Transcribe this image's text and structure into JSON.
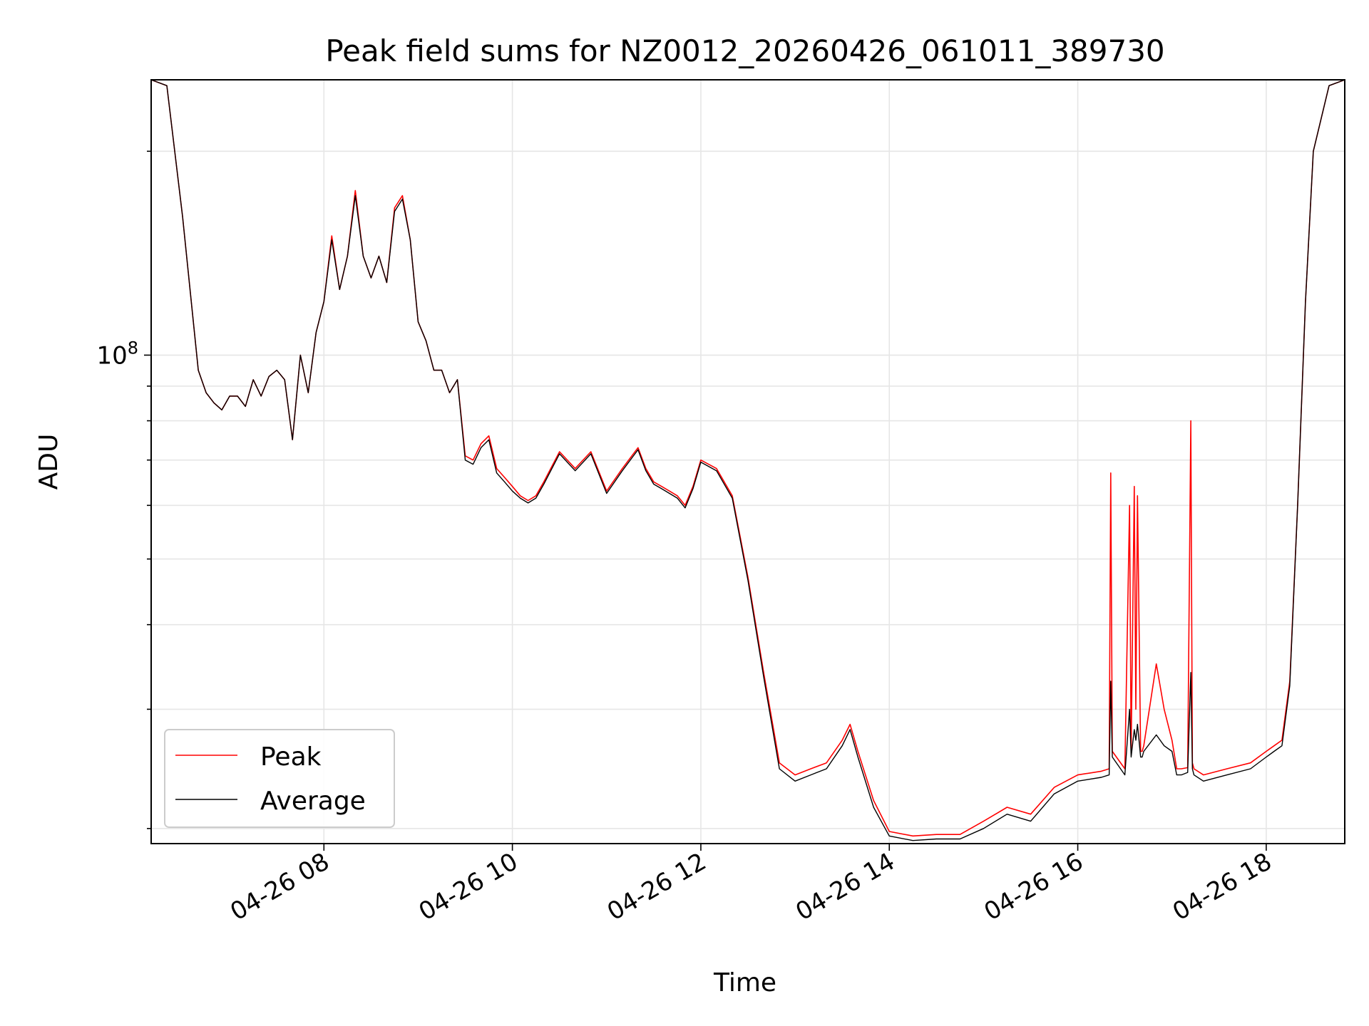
{
  "chart_data": {
    "type": "line",
    "title": "Peak field sums for NZ0012_20260426_061011_389730",
    "xlabel": "Time",
    "ylabel": "ADU",
    "yscale": "log",
    "grid": "on",
    "legend_placement": "lower-left",
    "xlim": [
      "2026-04-26 06:10",
      "2026-04-26 18:50"
    ],
    "ylim": [
      19000000.0,
      255000000.0
    ],
    "x_ticks": [
      {
        "label": "04-26 08",
        "value": "2026-04-26 08:00"
      },
      {
        "label": "04-26 10",
        "value": "2026-04-26 10:00"
      },
      {
        "label": "04-26 12",
        "value": "2026-04-26 12:00"
      },
      {
        "label": "04-26 14",
        "value": "2026-04-26 14:00"
      },
      {
        "label": "04-26 16",
        "value": "2026-04-26 16:00"
      },
      {
        "label": "04-26 18",
        "value": "2026-04-26 18:00"
      }
    ],
    "y_ticks": [
      {
        "base": "10",
        "exp": "8",
        "value": 100000000
      }
    ],
    "series": [
      {
        "name": "Peak",
        "color": "#ff0000",
        "x": [
          "2026-04-26 06:10",
          "2026-04-26 06:20",
          "2026-04-26 06:30",
          "2026-04-26 06:40",
          "2026-04-26 06:45",
          "2026-04-26 06:50",
          "2026-04-26 06:55",
          "2026-04-26 07:00",
          "2026-04-26 07:05",
          "2026-04-26 07:10",
          "2026-04-26 07:15",
          "2026-04-26 07:20",
          "2026-04-26 07:25",
          "2026-04-26 07:30",
          "2026-04-26 07:35",
          "2026-04-26 07:40",
          "2026-04-26 07:45",
          "2026-04-26 07:50",
          "2026-04-26 07:55",
          "2026-04-26 08:00",
          "2026-04-26 08:05",
          "2026-04-26 08:10",
          "2026-04-26 08:15",
          "2026-04-26 08:20",
          "2026-04-26 08:25",
          "2026-04-26 08:30",
          "2026-04-26 08:35",
          "2026-04-26 08:40",
          "2026-04-26 08:45",
          "2026-04-26 08:50",
          "2026-04-26 08:55",
          "2026-04-26 09:00",
          "2026-04-26 09:05",
          "2026-04-26 09:10",
          "2026-04-26 09:15",
          "2026-04-26 09:20",
          "2026-04-26 09:25",
          "2026-04-26 09:30",
          "2026-04-26 09:35",
          "2026-04-26 09:40",
          "2026-04-26 09:45",
          "2026-04-26 09:50",
          "2026-04-26 09:55",
          "2026-04-26 10:00",
          "2026-04-26 10:05",
          "2026-04-26 10:10",
          "2026-04-26 10:15",
          "2026-04-26 10:20",
          "2026-04-26 10:30",
          "2026-04-26 10:40",
          "2026-04-26 10:50",
          "2026-04-26 11:00",
          "2026-04-26 11:10",
          "2026-04-26 11:20",
          "2026-04-26 11:25",
          "2026-04-26 11:30",
          "2026-04-26 11:35",
          "2026-04-26 11:40",
          "2026-04-26 11:45",
          "2026-04-26 11:50",
          "2026-04-26 11:55",
          "2026-04-26 12:00",
          "2026-04-26 12:10",
          "2026-04-26 12:20",
          "2026-04-26 12:30",
          "2026-04-26 12:40",
          "2026-04-26 12:50",
          "2026-04-26 13:00",
          "2026-04-26 13:10",
          "2026-04-26 13:20",
          "2026-04-26 13:30",
          "2026-04-26 13:35",
          "2026-04-26 13:40",
          "2026-04-26 13:50",
          "2026-04-26 14:00",
          "2026-04-26 14:15",
          "2026-04-26 14:30",
          "2026-04-26 14:45",
          "2026-04-26 15:00",
          "2026-04-26 15:15",
          "2026-04-26 15:30",
          "2026-04-26 15:45",
          "2026-04-26 16:00",
          "2026-04-26 16:15",
          "2026-04-26 16:20",
          "2026-04-26 16:21",
          "2026-04-26 16:22",
          "2026-04-26 16:30",
          "2026-04-26 16:33",
          "2026-04-26 16:34",
          "2026-04-26 16:36",
          "2026-04-26 16:37",
          "2026-04-26 16:38",
          "2026-04-26 16:40",
          "2026-04-26 16:41",
          "2026-04-26 16:42",
          "2026-04-26 16:50",
          "2026-04-26 16:55",
          "2026-04-26 17:00",
          "2026-04-26 17:03",
          "2026-04-26 17:06",
          "2026-04-26 17:10",
          "2026-04-26 17:12",
          "2026-04-26 17:13",
          "2026-04-26 17:14",
          "2026-04-26 17:20",
          "2026-04-26 17:35",
          "2026-04-26 17:50",
          "2026-04-26 18:00",
          "2026-04-26 18:05",
          "2026-04-26 18:10",
          "2026-04-26 18:15",
          "2026-04-26 18:20",
          "2026-04-26 18:25",
          "2026-04-26 18:30",
          "2026-04-26 18:40",
          "2026-04-26 18:50"
        ],
        "values": [
          255000000,
          250000000,
          160000000,
          95000000,
          88000000,
          85000000,
          83000000,
          87000000,
          87000000,
          84000000,
          92000000,
          87000000,
          93000000,
          95000000,
          92000000,
          75000000,
          100000000,
          88000000,
          108000000,
          120000000,
          150000000,
          125000000,
          140000000,
          175000000,
          140000000,
          130000000,
          140000000,
          128000000,
          165000000,
          172000000,
          148000000,
          112000000,
          105000000,
          95000000,
          95000000,
          88000000,
          92000000,
          71000000,
          70000000,
          74000000,
          76000000,
          68000000,
          66000000,
          64000000,
          62000000,
          61000000,
          62000000,
          65000000,
          72000000,
          68000000,
          72000000,
          63000000,
          68000000,
          73000000,
          68000000,
          65000000,
          64000000,
          63000000,
          62000000,
          60000000,
          64000000,
          70000000,
          68000000,
          62000000,
          47000000,
          34000000,
          25000000,
          24000000,
          24500000,
          25000000,
          27000000,
          28500000,
          26000000,
          22000000,
          19800000,
          19500000,
          19600000,
          19600000,
          20500000,
          21500000,
          21000000,
          23000000,
          24000000,
          24300000,
          24500000,
          67000000,
          26000000,
          24500000,
          60000000,
          26000000,
          64000000,
          30000000,
          62000000,
          26000000,
          26000000,
          26500000,
          35000000,
          30000000,
          27000000,
          24500000,
          24500000,
          24600000,
          80000000,
          25000000,
          24500000,
          24000000,
          24500000,
          25000000,
          26000000,
          26500000,
          27000000,
          33000000,
          60000000,
          120000000,
          200000000,
          250000000,
          255000000
        ]
      },
      {
        "name": "Average",
        "color": "#000000",
        "x": [
          "2026-04-26 06:10",
          "2026-04-26 06:20",
          "2026-04-26 06:30",
          "2026-04-26 06:40",
          "2026-04-26 06:45",
          "2026-04-26 06:50",
          "2026-04-26 06:55",
          "2026-04-26 07:00",
          "2026-04-26 07:05",
          "2026-04-26 07:10",
          "2026-04-26 07:15",
          "2026-04-26 07:20",
          "2026-04-26 07:25",
          "2026-04-26 07:30",
          "2026-04-26 07:35",
          "2026-04-26 07:40",
          "2026-04-26 07:45",
          "2026-04-26 07:50",
          "2026-04-26 07:55",
          "2026-04-26 08:00",
          "2026-04-26 08:05",
          "2026-04-26 08:10",
          "2026-04-26 08:15",
          "2026-04-26 08:20",
          "2026-04-26 08:25",
          "2026-04-26 08:30",
          "2026-04-26 08:35",
          "2026-04-26 08:40",
          "2026-04-26 08:45",
          "2026-04-26 08:50",
          "2026-04-26 08:55",
          "2026-04-26 09:00",
          "2026-04-26 09:05",
          "2026-04-26 09:10",
          "2026-04-26 09:15",
          "2026-04-26 09:20",
          "2026-04-26 09:25",
          "2026-04-26 09:30",
          "2026-04-26 09:35",
          "2026-04-26 09:40",
          "2026-04-26 09:45",
          "2026-04-26 09:50",
          "2026-04-26 09:55",
          "2026-04-26 10:00",
          "2026-04-26 10:05",
          "2026-04-26 10:10",
          "2026-04-26 10:15",
          "2026-04-26 10:20",
          "2026-04-26 10:30",
          "2026-04-26 10:40",
          "2026-04-26 10:50",
          "2026-04-26 11:00",
          "2026-04-26 11:10",
          "2026-04-26 11:20",
          "2026-04-26 11:25",
          "2026-04-26 11:30",
          "2026-04-26 11:35",
          "2026-04-26 11:40",
          "2026-04-26 11:45",
          "2026-04-26 11:50",
          "2026-04-26 11:55",
          "2026-04-26 12:00",
          "2026-04-26 12:10",
          "2026-04-26 12:20",
          "2026-04-26 12:30",
          "2026-04-26 12:40",
          "2026-04-26 12:50",
          "2026-04-26 13:00",
          "2026-04-26 13:10",
          "2026-04-26 13:20",
          "2026-04-26 13:30",
          "2026-04-26 13:35",
          "2026-04-26 13:40",
          "2026-04-26 13:50",
          "2026-04-26 14:00",
          "2026-04-26 14:15",
          "2026-04-26 14:30",
          "2026-04-26 14:45",
          "2026-04-26 15:00",
          "2026-04-26 15:15",
          "2026-04-26 15:30",
          "2026-04-26 15:45",
          "2026-04-26 16:00",
          "2026-04-26 16:15",
          "2026-04-26 16:20",
          "2026-04-26 16:21",
          "2026-04-26 16:22",
          "2026-04-26 16:30",
          "2026-04-26 16:33",
          "2026-04-26 16:34",
          "2026-04-26 16:36",
          "2026-04-26 16:37",
          "2026-04-26 16:38",
          "2026-04-26 16:40",
          "2026-04-26 16:41",
          "2026-04-26 16:42",
          "2026-04-26 16:50",
          "2026-04-26 16:55",
          "2026-04-26 17:00",
          "2026-04-26 17:03",
          "2026-04-26 17:06",
          "2026-04-26 17:10",
          "2026-04-26 17:12",
          "2026-04-26 17:13",
          "2026-04-26 17:14",
          "2026-04-26 17:20",
          "2026-04-26 17:35",
          "2026-04-26 17:50",
          "2026-04-26 18:00",
          "2026-04-26 18:05",
          "2026-04-26 18:10",
          "2026-04-26 18:15",
          "2026-04-26 18:20",
          "2026-04-26 18:25",
          "2026-04-26 18:30",
          "2026-04-26 18:40",
          "2026-04-26 18:50"
        ],
        "values": [
          255000000,
          250000000,
          160000000,
          95000000,
          88000000,
          85000000,
          83000000,
          87000000,
          87000000,
          84000000,
          92000000,
          87000000,
          93000000,
          95000000,
          92000000,
          75000000,
          100000000,
          88000000,
          108000000,
          120000000,
          148000000,
          125000000,
          140000000,
          172000000,
          140000000,
          130000000,
          140000000,
          128000000,
          163000000,
          170000000,
          148000000,
          112000000,
          105000000,
          95000000,
          95000000,
          88000000,
          92000000,
          70000000,
          69000000,
          73000000,
          75000000,
          67000000,
          65000000,
          63000000,
          61500000,
          60500000,
          61500000,
          64500000,
          71500000,
          67500000,
          71500000,
          62500000,
          67500000,
          72500000,
          67500000,
          64500000,
          63500000,
          62500000,
          61500000,
          59500000,
          63500000,
          69500000,
          67500000,
          61500000,
          46500000,
          33500000,
          24500000,
          23500000,
          24000000,
          24500000,
          26500000,
          28000000,
          25500000,
          21500000,
          19500000,
          19200000,
          19300000,
          19300000,
          20000000,
          21000000,
          20500000,
          22500000,
          23500000,
          23800000,
          24000000,
          33000000,
          25500000,
          24000000,
          30000000,
          25500000,
          28000000,
          27000000,
          28500000,
          25500000,
          25500000,
          26000000,
          27500000,
          26500000,
          26000000,
          24000000,
          24000000,
          24200000,
          34000000,
          24500000,
          24000000,
          23500000,
          24000000,
          24500000,
          25500000,
          26000000,
          26500000,
          32500000,
          60000000,
          120000000,
          200000000,
          250000000,
          255000000
        ]
      }
    ],
    "legend": [
      {
        "name": "Peak",
        "color": "#ff0000"
      },
      {
        "name": "Average",
        "color": "#000000"
      }
    ]
  }
}
